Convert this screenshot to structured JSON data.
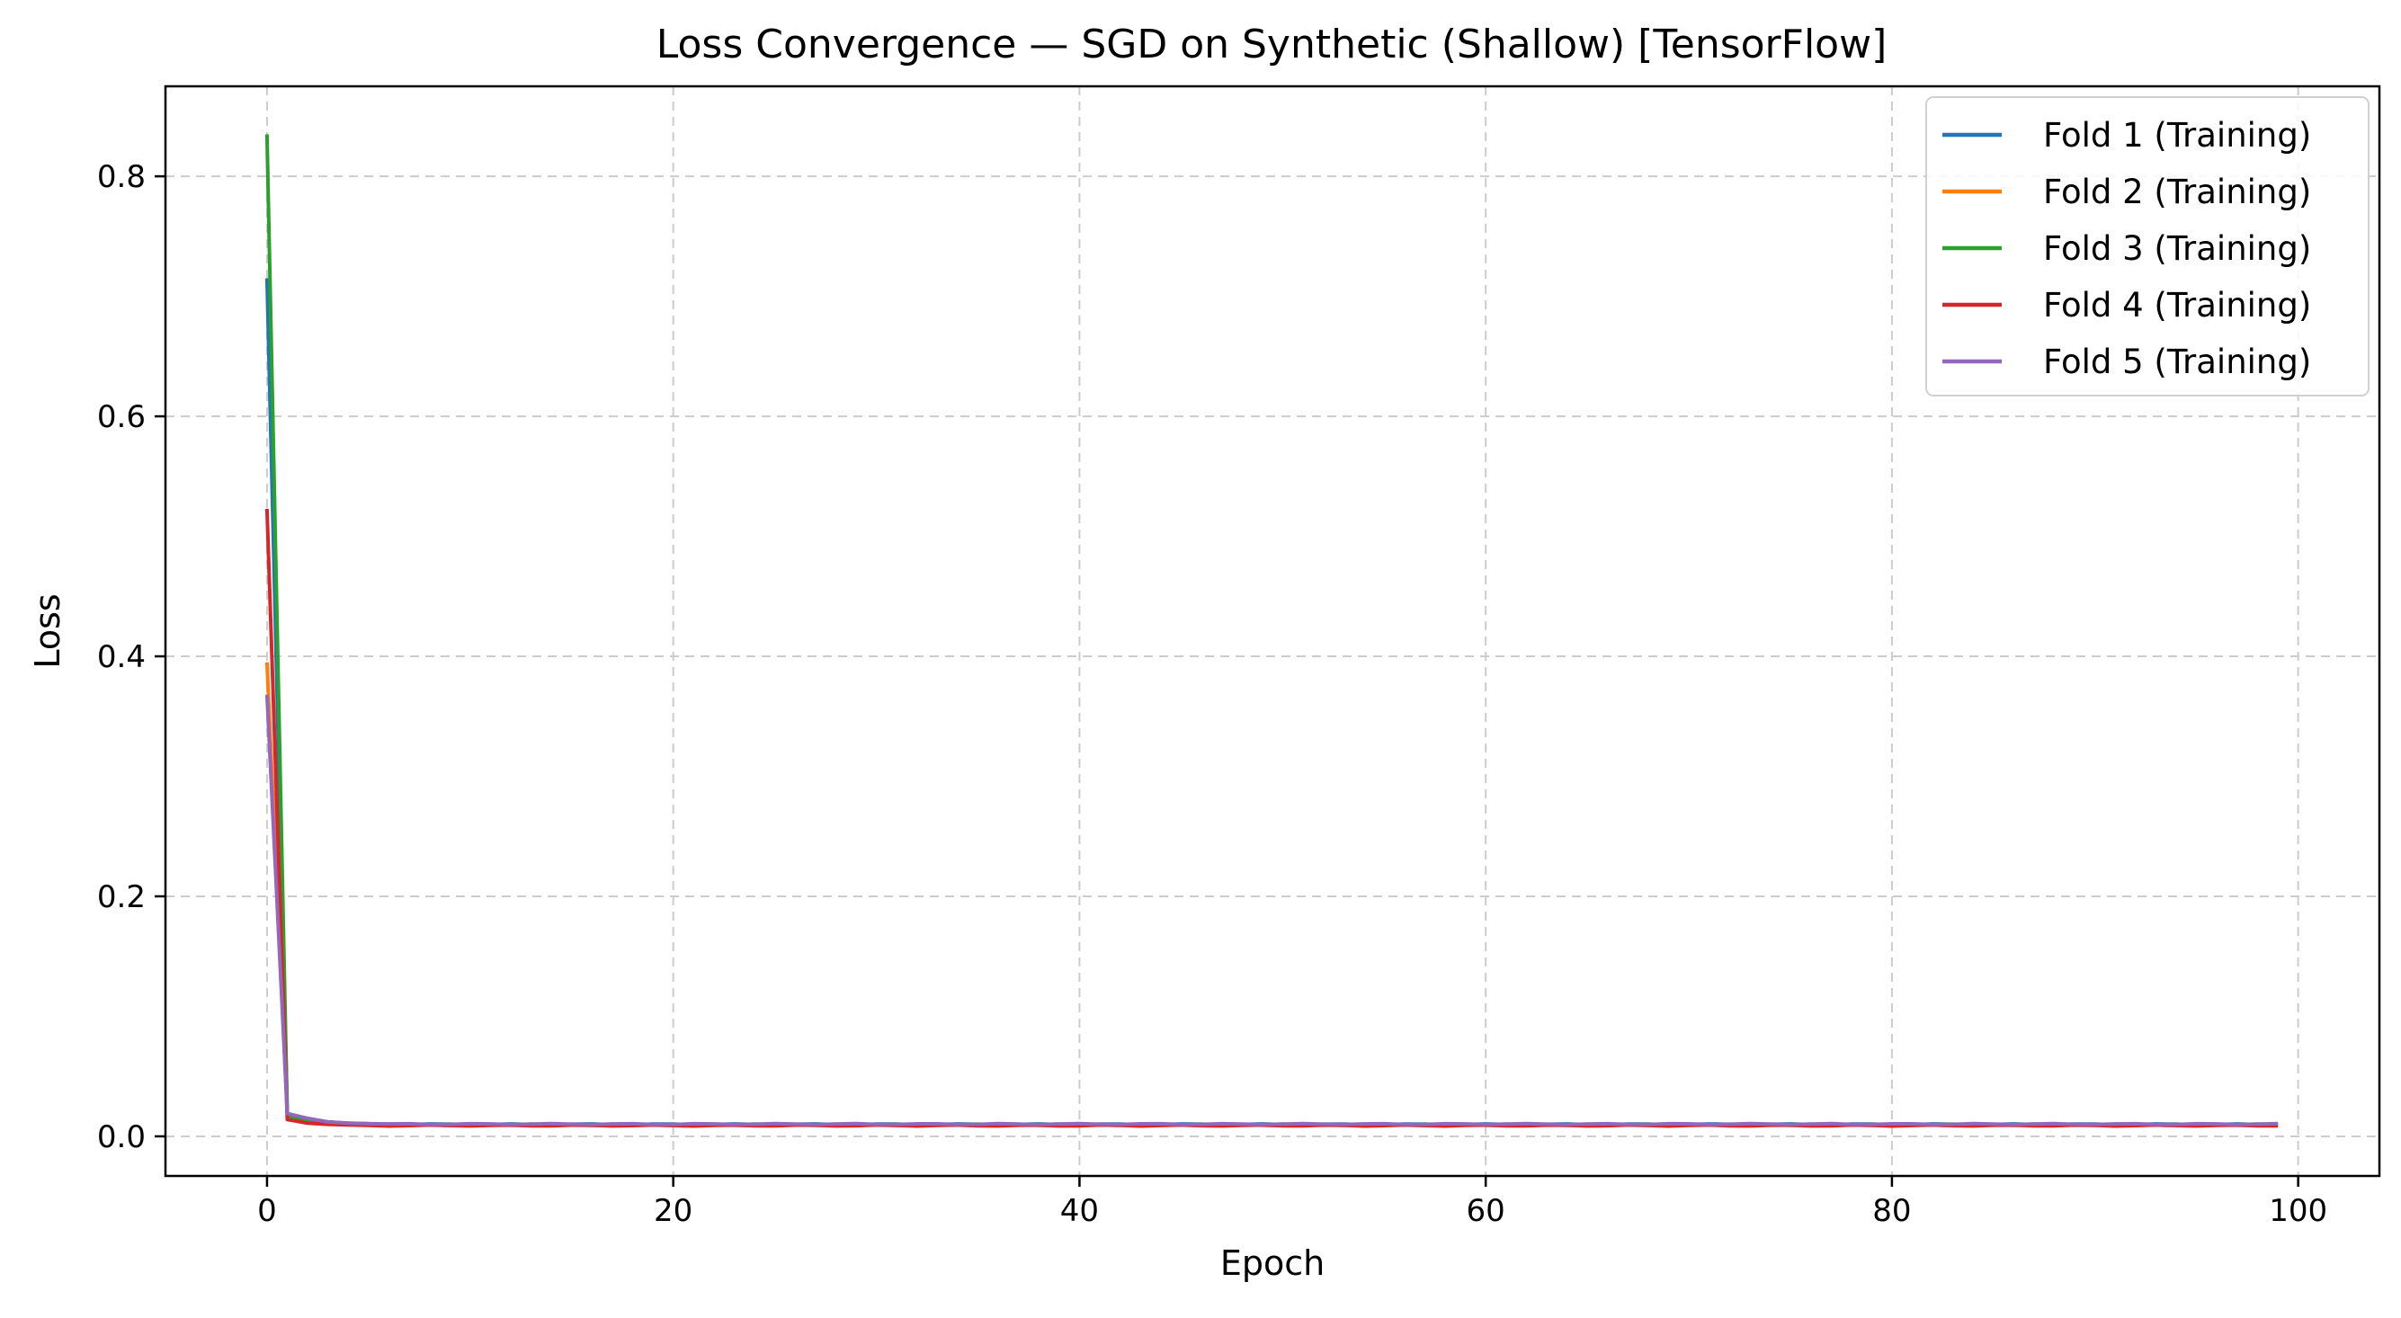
{
  "chart_data": {
    "type": "line",
    "title": "Loss Convergence — SGD on Synthetic (Shallow) [TensorFlow]",
    "xlabel": "Epoch",
    "ylabel": "Loss",
    "xlim": [
      -5,
      104
    ],
    "ylim": [
      -0.033,
      0.875
    ],
    "xticks": [
      0,
      20,
      40,
      60,
      80,
      100
    ],
    "yticks": [
      0.0,
      0.2,
      0.4,
      0.6,
      0.8
    ],
    "xtick_labels": [
      "0",
      "20",
      "40",
      "60",
      "80",
      "100"
    ],
    "ytick_labels": [
      "0.0",
      "0.2",
      "0.4",
      "0.6",
      "0.8"
    ],
    "grid": true,
    "legend_position": "top-right",
    "x_range": [
      0,
      99
    ],
    "series": [
      {
        "name": "Fold 1 (Training)",
        "color": "#1f77b4",
        "start": [
          0.715,
          0.018,
          0.014,
          0.012,
          0.011,
          0.0105
        ],
        "tail": 0.01
      },
      {
        "name": "Fold 2 (Training)",
        "color": "#ff7f0e",
        "start": [
          0.395,
          0.016,
          0.012,
          0.011,
          0.0105,
          0.01
        ],
        "tail": 0.0095
      },
      {
        "name": "Fold 3 (Training)",
        "color": "#2ca02c",
        "start": [
          0.835,
          0.017,
          0.013,
          0.011,
          0.0105,
          0.01
        ],
        "tail": 0.0098
      },
      {
        "name": "Fold 4 (Training)",
        "color": "#d62728",
        "start": [
          0.523,
          0.014,
          0.011,
          0.01,
          0.0095,
          0.0092
        ],
        "tail": 0.009
      },
      {
        "name": "Fold 5 (Training)",
        "color": "#9467bd",
        "start": [
          0.368,
          0.019,
          0.015,
          0.012,
          0.011,
          0.0105
        ],
        "tail": 0.0102
      }
    ]
  }
}
